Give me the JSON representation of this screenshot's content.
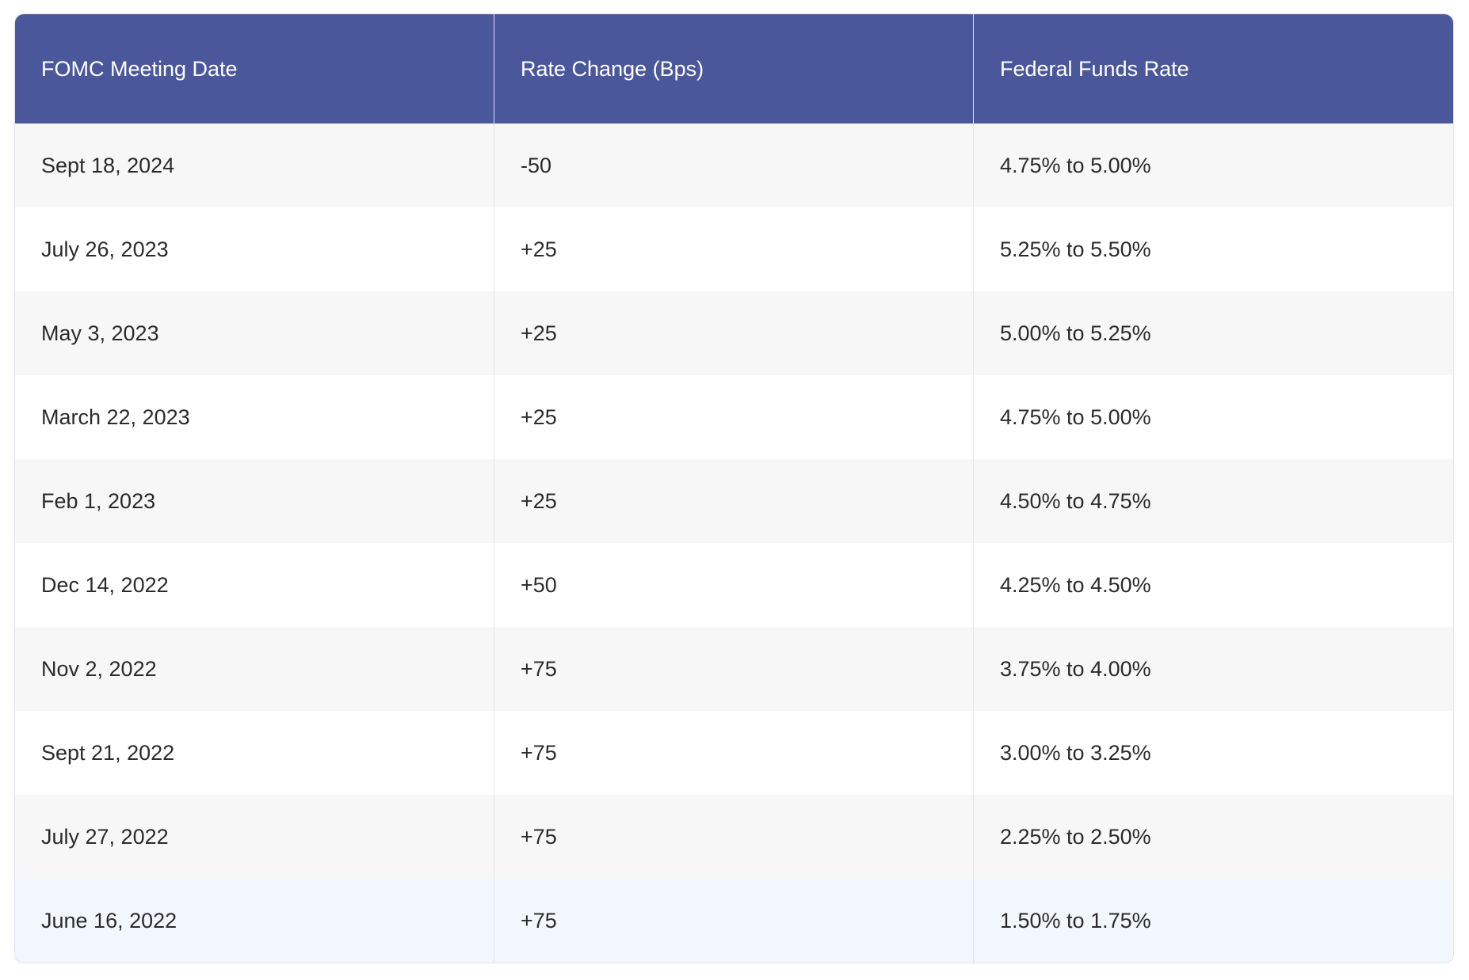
{
  "table": {
    "headers": [
      "FOMC Meeting Date",
      "Rate Change (Bps)",
      "Federal Funds Rate"
    ],
    "rows": [
      [
        "Sept 18, 2024",
        "-50",
        "4.75% to 5.00%"
      ],
      [
        "July 26, 2023",
        "+25",
        "5.25% to 5.50%"
      ],
      [
        "May 3, 2023",
        "+25",
        "5.00% to 5.25%"
      ],
      [
        "March 22, 2023",
        "+25",
        "4.75% to 5.00%"
      ],
      [
        "Feb 1, 2023",
        "+25",
        "4.50% to 4.75%"
      ],
      [
        "Dec 14, 2022",
        "+50",
        "4.25% to 4.50%"
      ],
      [
        "Nov 2, 2022",
        "+75",
        "3.75% to 4.00%"
      ],
      [
        "Sept 21, 2022",
        "+75",
        "3.00% to 3.25%"
      ],
      [
        "July 27, 2022",
        "+75",
        "2.25% to 2.50%"
      ],
      [
        "June 16, 2022",
        "+75",
        "1.50% to 1.75%"
      ]
    ]
  },
  "colors": {
    "header_bg": "#4b579b",
    "header_text": "#ffffff",
    "row_alt": "#f7f7f7",
    "row_last": "#f2f6fd"
  }
}
